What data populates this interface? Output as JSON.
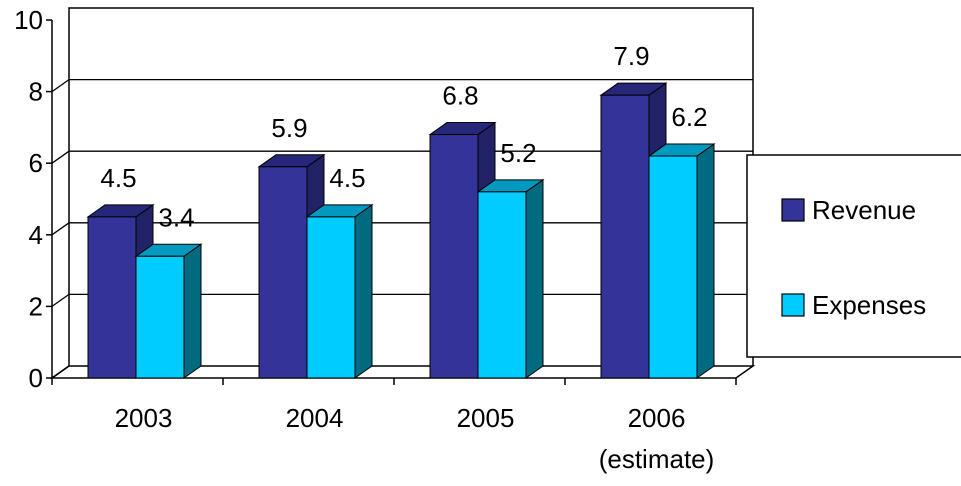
{
  "chart_data": {
    "type": "bar",
    "style": "3d-clustered-column",
    "categories": [
      [
        "2003"
      ],
      [
        "2004"
      ],
      [
        "2005"
      ],
      [
        "2006",
        "(estimate)"
      ]
    ],
    "series": [
      {
        "name": "Revenue",
        "values": [
          4.5,
          5.9,
          6.8,
          7.9
        ]
      },
      {
        "name": "Expenses",
        "values": [
          3.4,
          4.5,
          5.2,
          6.2
        ]
      }
    ],
    "y_ticks": [
      "0",
      "2",
      "4",
      "6",
      "8",
      "10"
    ],
    "ylim": [
      0,
      10
    ],
    "grid": true,
    "legend_placement": "right"
  },
  "colors": {
    "revenue_front": "#333399",
    "revenue_side": "#222266",
    "revenue_top": "#26267a",
    "expenses_front": "#00ccff",
    "expenses_side": "#006b80",
    "expenses_top": "#0099bf",
    "gridline": "#000000",
    "axis": "#000000"
  }
}
